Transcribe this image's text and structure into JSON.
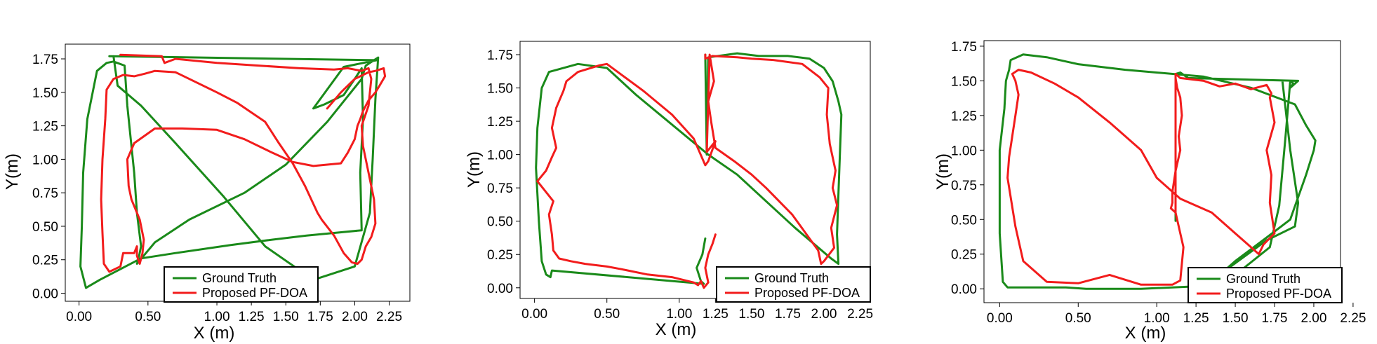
{
  "colors": {
    "ground_truth": "#1a8a1a",
    "proposed": "#f21c1c"
  },
  "chart_data": [
    {
      "type": "line",
      "xlabel": "X (m)",
      "ylabel": "Y(m)",
      "xlim": [
        -0.1,
        2.4
      ],
      "ylim": [
        -0.06,
        1.86
      ],
      "xticks": [
        "0.00",
        "0.50",
        "1.00",
        "1.25",
        "1.50",
        "1.75",
        "2.00",
        "2.25"
      ],
      "xtick_values": [
        0.0,
        0.5,
        1.0,
        1.25,
        1.5,
        1.75,
        2.0,
        2.25
      ],
      "yticks": [
        "0.00",
        "0.25",
        "0.50",
        "0.75",
        "1.00",
        "1.25",
        "1.50",
        "1.75"
      ],
      "ytick_values": [
        0.0,
        0.25,
        0.5,
        0.75,
        1.0,
        1.25,
        1.5,
        1.75
      ],
      "legend_position": "lower-right",
      "series": [
        {
          "name": "Ground Truth",
          "color": "#1a8a1a",
          "x": [
            0.22,
            2.16,
            1.92,
            1.7,
            1.78,
            1.92,
            2.0,
            2.05,
            2.06,
            2.04,
            2.05,
            1.85,
            1.65,
            1.4,
            1.1,
            0.7,
            0.45,
            0.15,
            0.05,
            0.01,
            0.02,
            0.03,
            0.06,
            0.13,
            0.2,
            0.25,
            0.33,
            0.35,
            0.4,
            0.42,
            0.45,
            0.43,
            0.42,
            0.55,
            0.8,
            1.2,
            1.5,
            1.8,
            2.05,
            2.08,
            2.14,
            2.17,
            2.15,
            2.13,
            2.11,
            2.0,
            1.7,
            1.35,
            1.05,
            0.7,
            0.45,
            0.28,
            0.25
          ],
          "y": [
            1.77,
            1.74,
            1.69,
            1.38,
            1.41,
            1.48,
            1.6,
            1.68,
            1.3,
            0.9,
            0.47,
            0.45,
            0.43,
            0.4,
            0.36,
            0.3,
            0.26,
            0.1,
            0.04,
            0.2,
            0.5,
            0.9,
            1.3,
            1.66,
            1.72,
            1.73,
            1.7,
            1.4,
            0.9,
            0.6,
            0.35,
            0.25,
            0.22,
            0.38,
            0.55,
            0.75,
            0.96,
            1.28,
            1.6,
            1.7,
            1.74,
            1.76,
            1.45,
            1.0,
            0.6,
            0.2,
            0.1,
            0.35,
            0.72,
            1.12,
            1.4,
            1.55,
            1.77
          ]
        },
        {
          "name": "Proposed PF-DOA",
          "color": "#f21c1c",
          "x": [
            0.3,
            0.6,
            0.62,
            0.7,
            1.0,
            1.3,
            1.6,
            1.85,
            1.95,
            2.05,
            2.1,
            2.12,
            2.1,
            2.05,
            2.06,
            2.1,
            2.14,
            2.15,
            2.12,
            2.08,
            2.05,
            2.02,
            1.98,
            1.92,
            1.85,
            1.76,
            1.73,
            1.64,
            1.55,
            1.45,
            1.35,
            1.25,
            1.15,
            1.0,
            0.8,
            0.7,
            0.55,
            0.48,
            0.4,
            0.32,
            0.25,
            0.2,
            0.19,
            0.17,
            0.16,
            0.17,
            0.18,
            0.22,
            0.3,
            0.32,
            0.4,
            0.42,
            0.42,
            0.44,
            0.46,
            0.47,
            0.44,
            0.38,
            0.36,
            0.35,
            0.4,
            0.55,
            0.75,
            1.0,
            1.2,
            1.4,
            1.55,
            1.7,
            1.9,
            1.95,
            2.0,
            2.02,
            2.04,
            2.06,
            2.1,
            2.15,
            2.18,
            2.22,
            2.21,
            2.15,
            2.1,
            2.0,
            1.9,
            1.8
          ],
          "y": [
            1.78,
            1.77,
            1.72,
            1.75,
            1.72,
            1.7,
            1.68,
            1.67,
            1.68,
            1.66,
            1.68,
            1.6,
            1.4,
            1.25,
            1.1,
            0.9,
            0.7,
            0.52,
            0.42,
            0.35,
            0.25,
            0.22,
            0.23,
            0.3,
            0.43,
            0.55,
            0.6,
            0.8,
            0.97,
            1.12,
            1.28,
            1.35,
            1.42,
            1.5,
            1.6,
            1.65,
            1.66,
            1.64,
            1.62,
            1.63,
            1.6,
            1.52,
            1.3,
            1.0,
            0.7,
            0.45,
            0.22,
            0.16,
            0.2,
            0.3,
            0.3,
            0.35,
            0.28,
            0.22,
            0.3,
            0.4,
            0.55,
            0.7,
            0.8,
            1.0,
            1.12,
            1.23,
            1.23,
            1.22,
            1.15,
            1.05,
            0.98,
            0.95,
            0.97,
            1.05,
            1.15,
            1.25,
            1.3,
            1.36,
            1.44,
            1.5,
            1.55,
            1.62,
            1.68,
            1.66,
            1.65,
            1.6,
            1.5,
            1.38
          ]
        }
      ]
    },
    {
      "type": "line",
      "xlabel": "X (m)",
      "ylabel": "Y(m)",
      "xlim": [
        -0.1,
        2.32
      ],
      "ylim": [
        -0.08,
        1.85
      ],
      "xticks": [
        "0.00",
        "0.50",
        "1.00",
        "1.25",
        "1.50",
        "1.75",
        "2.00",
        "2.25"
      ],
      "xtick_values": [
        0.0,
        0.5,
        1.0,
        1.25,
        1.5,
        1.75,
        2.0,
        2.25
      ],
      "yticks": [
        "0.00",
        "0.25",
        "0.50",
        "0.75",
        "1.00",
        "1.25",
        "1.50",
        "1.75"
      ],
      "ytick_values": [
        0.0,
        0.25,
        0.5,
        0.75,
        1.0,
        1.25,
        1.5,
        1.75
      ],
      "legend_position": "lower-right",
      "series": [
        {
          "name": "Ground Truth",
          "color": "#1a8a1a",
          "x": [
            1.18,
            1.19,
            1.2,
            1.4,
            1.55,
            1.75,
            1.9,
            2.0,
            2.06,
            2.1,
            2.12,
            2.11,
            2.1,
            2.09,
            2.1,
            2.05,
            1.8,
            1.6,
            1.4,
            1.2,
            0.9,
            0.7,
            0.5,
            0.3,
            0.1,
            0.05,
            0.02,
            0.01,
            0.03,
            0.05,
            0.08,
            0.11,
            0.12,
            1.17,
            1.15,
            1.12,
            1.16,
            1.18
          ],
          "y": [
            1.75,
            1.0,
            1.73,
            1.76,
            1.74,
            1.74,
            1.72,
            1.65,
            1.55,
            1.4,
            1.3,
            1.0,
            0.7,
            0.4,
            0.18,
            0.22,
            0.45,
            0.65,
            0.85,
            1.0,
            1.27,
            1.45,
            1.65,
            1.68,
            1.62,
            1.5,
            1.2,
            0.9,
            0.5,
            0.2,
            0.1,
            0.08,
            0.13,
            0.03,
            0.05,
            0.15,
            0.25,
            0.37
          ]
        },
        {
          "name": "Proposed PF-DOA",
          "color": "#f21c1c",
          "x": [
            1.18,
            1.18,
            1.23,
            1.4,
            1.5,
            1.65,
            1.85,
            1.97,
            2.03,
            2.02,
            2.04,
            2.08,
            2.06,
            2.09,
            2.05,
            2.07,
            2.0,
            1.98,
            1.96,
            1.88,
            1.78,
            1.6,
            1.5,
            1.38,
            1.25,
            1.22,
            1.2,
            1.24,
            1.21,
            1.19,
            1.25,
            1.2,
            1.18,
            1.1,
            0.95,
            0.75,
            0.5,
            0.45,
            0.3,
            0.22,
            0.2,
            0.15,
            0.12,
            0.15,
            0.12,
            0.08,
            0.02,
            0.13,
            0.1,
            0.12,
            0.13,
            0.17,
            0.25,
            0.35,
            0.5,
            0.6,
            0.78,
            0.95,
            1.1,
            1.13,
            1.15,
            1.17,
            1.2,
            1.18,
            1.2,
            1.23,
            1.25
          ],
          "y": [
            1.75,
            1.72,
            1.74,
            1.73,
            1.72,
            1.71,
            1.68,
            1.58,
            1.5,
            1.3,
            1.08,
            0.88,
            0.75,
            0.62,
            0.45,
            0.3,
            0.2,
            0.18,
            0.28,
            0.4,
            0.55,
            0.75,
            0.85,
            0.95,
            1.05,
            1.25,
            1.4,
            1.55,
            1.75,
            1.02,
            1.1,
            0.95,
            0.92,
            1.12,
            1.3,
            1.48,
            1.68,
            1.67,
            1.62,
            1.55,
            1.48,
            1.35,
            1.2,
            1.05,
            0.98,
            0.88,
            0.8,
            0.65,
            0.55,
            0.4,
            0.28,
            0.22,
            0.2,
            0.18,
            0.16,
            0.14,
            0.1,
            0.08,
            0.04,
            0.02,
            0.05,
            0.0,
            0.04,
            0.15,
            0.25,
            0.33,
            0.4
          ]
        }
      ]
    },
    {
      "type": "line",
      "xlabel": "X (m)",
      "ylabel": "Y(m)",
      "xlim": [
        -0.1,
        2.17
      ],
      "ylim": [
        -0.1,
        1.79
      ],
      "xticks": [
        "0.00",
        "0.50",
        "1.00",
        "1.25",
        "1.50",
        "1.75",
        "2.00",
        "2.25"
      ],
      "xtick_values": [
        0.0,
        0.5,
        1.0,
        1.25,
        1.5,
        1.75,
        2.0,
        2.25
      ],
      "yticks": [
        "0.00",
        "0.25",
        "0.50",
        "0.75",
        "1.00",
        "1.25",
        "1.50",
        "1.75"
      ],
      "ytick_values": [
        0.0,
        0.25,
        0.5,
        0.75,
        1.0,
        1.25,
        1.5,
        1.75
      ],
      "legend_position": "lower-right",
      "series": [
        {
          "name": "Ground Truth",
          "color": "#1a8a1a",
          "x": [
            1.12,
            1.12,
            1.15,
            1.2,
            1.9,
            1.85,
            1.87,
            1.85,
            1.82,
            1.78,
            1.72,
            1.5,
            1.3,
            1.5,
            1.7,
            1.85,
            1.95,
            2.0,
            2.01,
            1.95,
            1.88,
            1.6,
            1.3,
            0.8,
            0.5,
            0.3,
            0.15,
            0.07,
            0.06,
            0.04,
            0.03,
            0.0,
            0.0,
            0.02,
            0.05,
            0.1,
            0.2,
            0.3,
            0.42,
            0.55,
            0.9,
            1.3,
            1.7,
            1.88,
            1.9,
            1.85,
            1.82,
            1.8
          ],
          "y": [
            0.49,
            1.55,
            1.56,
            1.52,
            1.5,
            1.45,
            1.48,
            1.5,
            1.1,
            0.6,
            0.3,
            0.1,
            0.0,
            0.2,
            0.37,
            0.5,
            0.82,
            1.0,
            1.07,
            1.18,
            1.33,
            1.45,
            1.53,
            1.58,
            1.62,
            1.67,
            1.69,
            1.65,
            1.58,
            1.5,
            1.3,
            1.0,
            0.4,
            0.05,
            0.01,
            0.01,
            0.01,
            0.01,
            0.01,
            0.0,
            0.0,
            0.02,
            0.35,
            0.45,
            0.62,
            1.0,
            1.3,
            1.5
          ],
          "note_skip": false
        },
        {
          "name": "Proposed PF-DOA",
          "color": "#f21c1c",
          "x": [
            1.12,
            1.12,
            1.15,
            1.3,
            1.4,
            1.5,
            1.6,
            1.7,
            1.73,
            1.72,
            1.75,
            1.7,
            1.73,
            1.72,
            1.75,
            1.68,
            1.65,
            1.5,
            1.35,
            1.15,
            1.0,
            0.9,
            0.7,
            0.5,
            0.35,
            0.2,
            0.12,
            0.08,
            0.1,
            0.12,
            0.1,
            0.08,
            0.06,
            0.05,
            0.1,
            0.15,
            0.3,
            0.5,
            0.7,
            0.9,
            1.1,
            1.15,
            1.17,
            1.12,
            1.09,
            1.1,
            1.1,
            1.12,
            1.15,
            1.14,
            1.16,
            1.15,
            1.13,
            1.12
          ],
          "y": [
            0.56,
            1.55,
            1.52,
            1.5,
            1.46,
            1.48,
            1.44,
            1.47,
            1.41,
            1.38,
            1.2,
            1.0,
            0.82,
            0.62,
            0.4,
            0.32,
            0.25,
            0.4,
            0.55,
            0.65,
            0.8,
            1.0,
            1.2,
            1.38,
            1.48,
            1.56,
            1.58,
            1.55,
            1.5,
            1.4,
            1.25,
            1.1,
            0.95,
            0.8,
            0.45,
            0.2,
            0.05,
            0.04,
            0.1,
            0.03,
            0.03,
            0.06,
            0.3,
            0.55,
            0.58,
            0.62,
            0.7,
            0.85,
            1.0,
            1.1,
            1.25,
            1.38,
            1.45,
            1.52
          ]
        }
      ]
    }
  ]
}
